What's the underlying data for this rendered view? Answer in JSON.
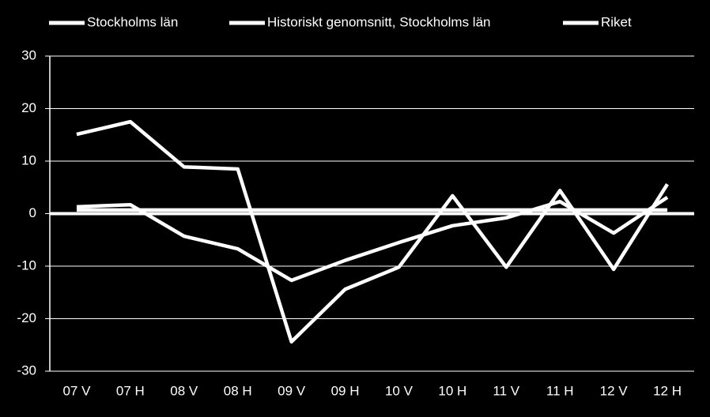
{
  "chart_data": {
    "type": "line",
    "categories": [
      "07 V",
      "07 H",
      "08 V",
      "08 H",
      "09 V",
      "09 H",
      "10 V",
      "10 H",
      "11 V",
      "11 H",
      "12 V",
      "12 H"
    ],
    "series": [
      {
        "name": "Stockholms län",
        "color": "#ffffff",
        "values": [
          15.1,
          17.5,
          8.9,
          8.5,
          -24.4,
          -14.4,
          -10.2,
          3.4,
          -10.2,
          4.4,
          -10.6,
          5.6
        ]
      },
      {
        "name": "Historiskt genomsnitt, Stockholms län",
        "color": "#ffffff",
        "values": [
          0.7,
          0.7,
          0.7,
          0.7,
          0.7,
          0.7,
          0.7,
          0.7,
          0.7,
          0.7,
          0.7,
          0.7
        ]
      },
      {
        "name": "Riket",
        "color": "#ffffff",
        "values": [
          1.3,
          1.7,
          -4.3,
          -6.7,
          -12.7,
          -8.9,
          -5.5,
          -2.3,
          -0.8,
          2.3,
          -3.7,
          3.1
        ]
      }
    ],
    "ylim": [
      -30,
      30
    ],
    "yticks": [
      -30,
      -20,
      -10,
      0,
      10,
      20,
      30
    ],
    "grid": true,
    "legend": "top"
  }
}
